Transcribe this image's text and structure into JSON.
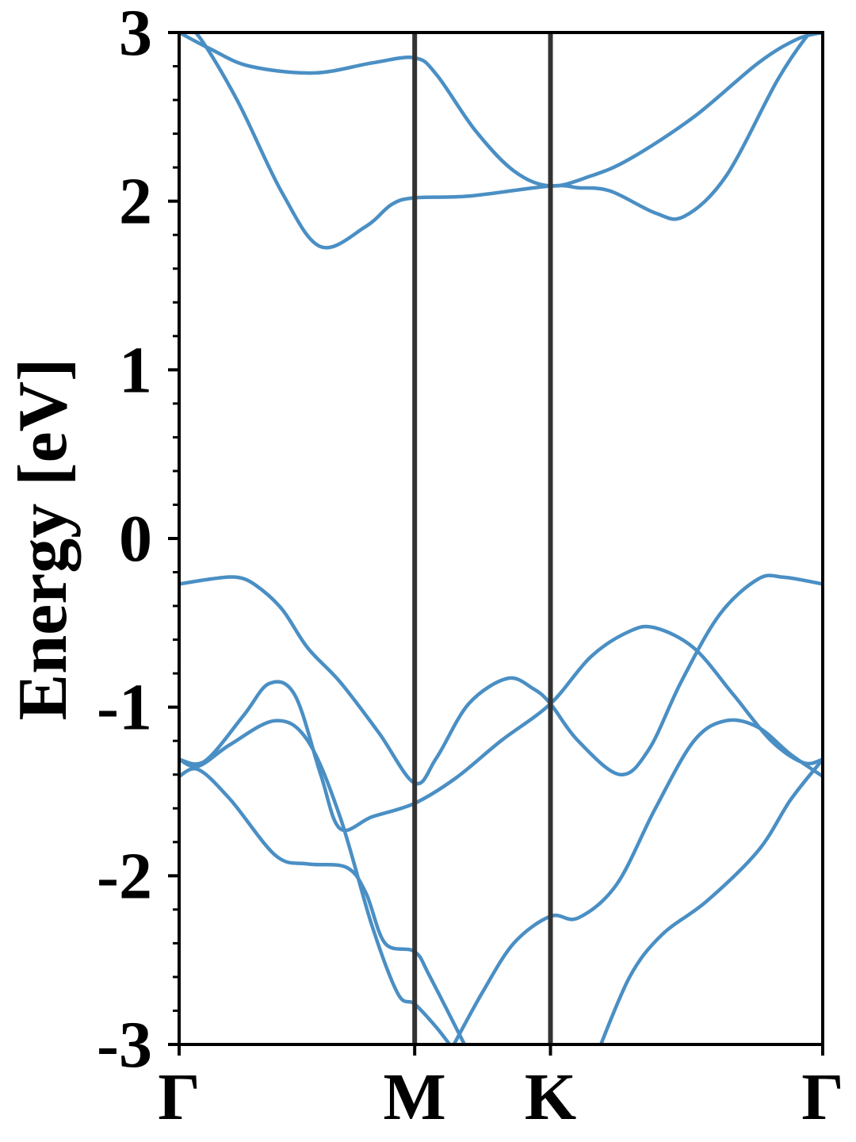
{
  "chart_data": {
    "type": "line",
    "title": "",
    "xlabel": "",
    "ylabel": "Energy [eV]",
    "ylim": [
      -3,
      3
    ],
    "xlim": [
      0,
      1
    ],
    "yticks": [
      "3",
      "2",
      "1",
      "0",
      "-1",
      "-2",
      "-3"
    ],
    "ytick_values": [
      3,
      2,
      1,
      0,
      -1,
      -2,
      -3
    ],
    "xticks": [
      {
        "label": "Γ",
        "x": 0.0
      },
      {
        "label": "M",
        "x": 0.366
      },
      {
        "label": "K",
        "x": 0.577
      },
      {
        "label": "Γ",
        "x": 1.0
      }
    ],
    "high_symmetry_lines": [
      0.366,
      0.577
    ],
    "grid": false,
    "colors": {
      "band": "#4a8fc4",
      "axis": "#000000",
      "symmetry_line": "#333333"
    },
    "series": [
      {
        "values": [
          [
            0,
            3.0
          ],
          [
            0.05,
            2.9
          ],
          [
            0.11,
            2.8
          ],
          [
            0.21,
            2.76
          ],
          [
            0.3,
            2.82
          ],
          [
            0.366,
            2.85
          ],
          [
            0.4,
            2.75
          ],
          [
            0.46,
            2.42
          ],
          [
            0.52,
            2.18
          ],
          [
            0.577,
            2.09
          ],
          [
            0.64,
            2.15
          ],
          [
            0.7,
            2.25
          ],
          [
            0.8,
            2.5
          ],
          [
            0.9,
            2.82
          ],
          [
            0.96,
            2.96
          ],
          [
            1.0,
            3.0
          ]
        ]
      },
      {
        "values": [
          [
            0,
            3.05
          ],
          [
            0.03,
            2.98
          ],
          [
            0.09,
            2.6
          ],
          [
            0.16,
            2.05
          ],
          [
            0.22,
            1.73
          ],
          [
            0.29,
            1.85
          ],
          [
            0.33,
            1.98
          ],
          [
            0.366,
            2.02
          ],
          [
            0.45,
            2.03
          ],
          [
            0.577,
            2.09
          ],
          [
            0.62,
            2.08
          ],
          [
            0.67,
            2.06
          ],
          [
            0.74,
            1.93
          ],
          [
            0.785,
            1.91
          ],
          [
            0.85,
            2.15
          ],
          [
            0.93,
            2.72
          ],
          [
            0.98,
            3.0
          ],
          [
            1.0,
            3.05
          ]
        ]
      },
      {
        "values": [
          [
            0,
            -0.27
          ],
          [
            0.05,
            -0.24
          ],
          [
            0.09,
            -0.23
          ],
          [
            0.12,
            -0.28
          ],
          [
            0.16,
            -0.42
          ],
          [
            0.2,
            -0.65
          ],
          [
            0.25,
            -0.85
          ],
          [
            0.31,
            -1.15
          ],
          [
            0.366,
            -1.45
          ],
          [
            0.4,
            -1.3
          ],
          [
            0.45,
            -0.98
          ],
          [
            0.51,
            -0.83
          ],
          [
            0.55,
            -0.89
          ],
          [
            0.577,
            -0.98
          ],
          [
            0.62,
            -1.2
          ],
          [
            0.685,
            -1.4
          ],
          [
            0.73,
            -1.25
          ],
          [
            0.78,
            -0.85
          ],
          [
            0.84,
            -0.45
          ],
          [
            0.9,
            -0.24
          ],
          [
            0.94,
            -0.23
          ],
          [
            1.0,
            -0.27
          ]
        ]
      },
      {
        "values": [
          [
            0,
            -1.31
          ],
          [
            0.04,
            -1.32
          ],
          [
            0.1,
            -1.05
          ],
          [
            0.14,
            -0.86
          ],
          [
            0.18,
            -0.93
          ],
          [
            0.22,
            -1.4
          ],
          [
            0.25,
            -1.72
          ],
          [
            0.3,
            -1.65
          ],
          [
            0.366,
            -1.57
          ],
          [
            0.43,
            -1.42
          ],
          [
            0.5,
            -1.2
          ],
          [
            0.577,
            -0.98
          ],
          [
            0.64,
            -0.7
          ],
          [
            0.7,
            -0.55
          ],
          [
            0.74,
            -0.53
          ],
          [
            0.8,
            -0.65
          ],
          [
            0.86,
            -0.92
          ],
          [
            0.92,
            -1.2
          ],
          [
            0.97,
            -1.33
          ],
          [
            1.0,
            -1.31
          ]
        ]
      },
      {
        "values": [
          [
            0,
            -1.31
          ],
          [
            0.03,
            -1.35
          ],
          [
            0.08,
            -1.22
          ],
          [
            0.15,
            -1.08
          ],
          [
            0.2,
            -1.2
          ],
          [
            0.25,
            -1.65
          ],
          [
            0.3,
            -2.3
          ],
          [
            0.34,
            -2.7
          ],
          [
            0.366,
            -2.76
          ],
          [
            0.4,
            -2.9
          ],
          [
            0.43,
            -3.05
          ]
        ]
      },
      {
        "values": [
          [
            0,
            -1.41
          ],
          [
            0.03,
            -1.37
          ],
          [
            0.08,
            -1.55
          ],
          [
            0.15,
            -1.88
          ],
          [
            0.2,
            -1.93
          ],
          [
            0.26,
            -1.95
          ],
          [
            0.29,
            -2.1
          ],
          [
            0.32,
            -2.4
          ],
          [
            0.366,
            -2.45
          ],
          [
            0.39,
            -2.6
          ],
          [
            0.45,
            -3.05
          ]
        ]
      },
      {
        "values": [
          [
            0.42,
            -3.05
          ],
          [
            0.47,
            -2.7
          ],
          [
            0.52,
            -2.4
          ],
          [
            0.577,
            -2.24
          ],
          [
            0.62,
            -2.25
          ],
          [
            0.68,
            -2.05
          ],
          [
            0.74,
            -1.6
          ],
          [
            0.8,
            -1.2
          ],
          [
            0.85,
            -1.08
          ],
          [
            0.9,
            -1.12
          ],
          [
            0.95,
            -1.28
          ],
          [
            1.0,
            -1.41
          ]
        ]
      },
      {
        "values": [
          [
            0.65,
            -3.05
          ],
          [
            0.7,
            -2.6
          ],
          [
            0.75,
            -2.35
          ],
          [
            0.82,
            -2.15
          ],
          [
            0.9,
            -1.85
          ],
          [
            0.95,
            -1.55
          ],
          [
            1.0,
            -1.31
          ]
        ]
      }
    ]
  }
}
